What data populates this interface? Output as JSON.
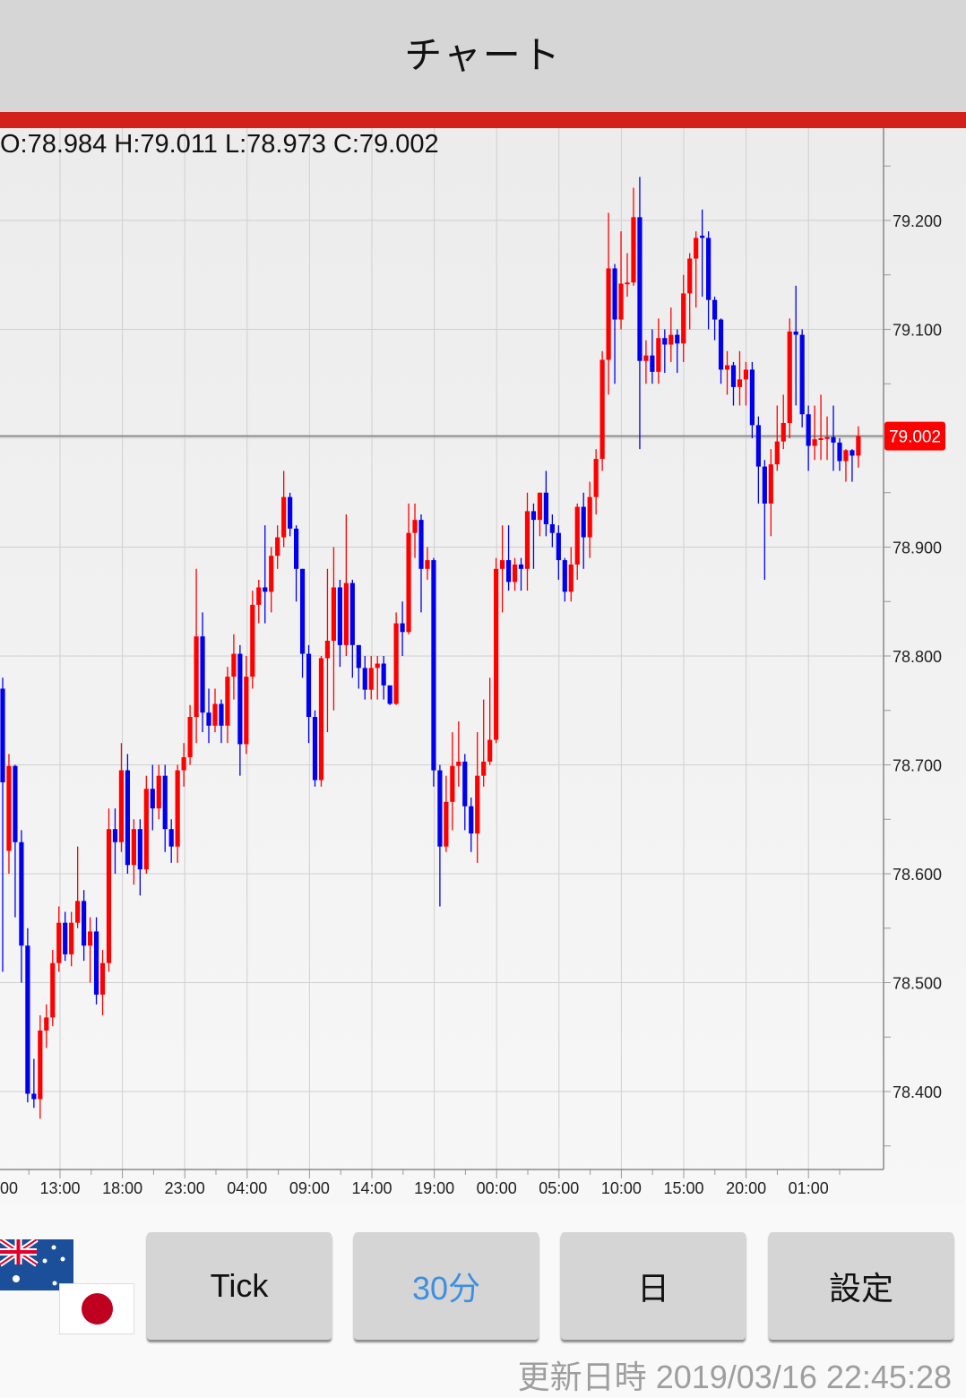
{
  "header": {
    "title": "チャート"
  },
  "ohlc_readout": "O:78.984 H:79.011 L:78.973 C:79.002",
  "colors": {
    "up": "#ff0000",
    "down": "#0000ee",
    "accent_bar": "#d3201a",
    "active_button": "#3d8fe0",
    "price_badge": "#ff0000"
  },
  "chart_data": {
    "type": "candlestick",
    "interval": "30分",
    "ylim": [
      78.35,
      79.28
    ],
    "grid": true,
    "y_ticks": [
      "79.200",
      "79.100",
      "78.900",
      "78.800",
      "78.700",
      "78.600",
      "78.500",
      "78.400"
    ],
    "y_tick_values": [
      79.2,
      79.1,
      78.9,
      78.8,
      78.7,
      78.6,
      78.5,
      78.4
    ],
    "x_ticks": [
      "00",
      "13:00",
      "18:00",
      "23:00",
      "04:00",
      "09:00",
      "14:00",
      "19:00",
      "00:00",
      "05:00",
      "10:00",
      "15:00",
      "20:00",
      "01:00"
    ],
    "current_price": "79.002",
    "current_price_value": 79.002,
    "candles_ohlc": [
      [
        78.77,
        78.78,
        78.51,
        78.684
      ],
      [
        78.621,
        78.71,
        78.6,
        78.699
      ],
      [
        78.699,
        78.7,
        78.56,
        78.629
      ],
      [
        78.629,
        78.64,
        78.5,
        78.534
      ],
      [
        78.534,
        78.55,
        78.39,
        78.398
      ],
      [
        78.398,
        78.43,
        78.385,
        78.393
      ],
      [
        78.393,
        78.47,
        78.375,
        78.456
      ],
      [
        78.456,
        78.48,
        78.44,
        78.468
      ],
      [
        78.468,
        78.53,
        78.46,
        78.518
      ],
      [
        78.518,
        78.57,
        78.51,
        78.555
      ],
      [
        78.555,
        78.565,
        78.52,
        78.526
      ],
      [
        78.526,
        78.565,
        78.515,
        78.555
      ],
      [
        78.555,
        78.625,
        78.55,
        78.575
      ],
      [
        78.575,
        78.585,
        78.52,
        78.534
      ],
      [
        78.534,
        78.56,
        78.5,
        78.547
      ],
      [
        78.547,
        78.56,
        78.48,
        78.489
      ],
      [
        78.489,
        78.53,
        78.47,
        78.518
      ],
      [
        78.518,
        78.66,
        78.51,
        78.641
      ],
      [
        78.641,
        78.66,
        78.6,
        78.629
      ],
      [
        78.629,
        78.72,
        78.62,
        78.695
      ],
      [
        78.695,
        78.71,
        78.6,
        78.608
      ],
      [
        78.608,
        78.65,
        78.59,
        78.641
      ],
      [
        78.641,
        78.65,
        78.58,
        78.604
      ],
      [
        78.604,
        78.69,
        78.6,
        78.678
      ],
      [
        78.678,
        78.7,
        78.64,
        78.66
      ],
      [
        78.66,
        78.7,
        78.65,
        78.69
      ],
      [
        78.69,
        78.7,
        78.62,
        78.641
      ],
      [
        78.641,
        78.65,
        78.61,
        78.625
      ],
      [
        78.625,
        78.7,
        78.61,
        78.695
      ],
      [
        78.695,
        78.72,
        78.68,
        78.707
      ],
      [
        78.707,
        78.755,
        78.7,
        78.744
      ],
      [
        78.744,
        78.88,
        78.72,
        78.818
      ],
      [
        78.818,
        78.84,
        78.73,
        78.748
      ],
      [
        78.748,
        78.77,
        78.72,
        78.736
      ],
      [
        78.736,
        78.77,
        78.73,
        78.756
      ],
      [
        78.756,
        78.76,
        78.72,
        78.736
      ],
      [
        78.736,
        78.79,
        78.72,
        78.781
      ],
      [
        78.781,
        78.82,
        78.76,
        78.802
      ],
      [
        78.802,
        78.81,
        78.69,
        78.719
      ],
      [
        78.719,
        78.8,
        78.71,
        78.781
      ],
      [
        78.781,
        78.86,
        78.77,
        78.847
      ],
      [
        78.847,
        78.87,
        78.83,
        78.863
      ],
      [
        78.863,
        78.92,
        78.83,
        78.859
      ],
      [
        78.859,
        78.9,
        78.84,
        78.892
      ],
      [
        78.892,
        78.92,
        78.88,
        78.909
      ],
      [
        78.909,
        78.97,
        78.9,
        78.946
      ],
      [
        78.946,
        78.95,
        78.91,
        78.917
      ],
      [
        78.917,
        78.92,
        78.85,
        78.88
      ],
      [
        78.88,
        78.88,
        78.78,
        78.802
      ],
      [
        78.802,
        78.81,
        78.72,
        78.744
      ],
      [
        78.744,
        78.75,
        78.68,
        78.686
      ],
      [
        78.686,
        78.8,
        78.68,
        78.798
      ],
      [
        78.798,
        78.88,
        78.73,
        78.814
      ],
      [
        78.814,
        78.9,
        78.75,
        78.863
      ],
      [
        78.863,
        78.87,
        78.79,
        78.81
      ],
      [
        78.81,
        78.93,
        78.8,
        78.867
      ],
      [
        78.867,
        78.87,
        78.78,
        78.81
      ],
      [
        78.81,
        78.81,
        78.77,
        78.789
      ],
      [
        78.789,
        78.8,
        78.76,
        78.769
      ],
      [
        78.769,
        78.8,
        78.76,
        78.789
      ],
      [
        78.789,
        78.8,
        78.76,
        78.793
      ],
      [
        78.793,
        78.8,
        78.76,
        78.773
      ],
      [
        78.773,
        78.77,
        78.755,
        78.756
      ],
      [
        78.756,
        78.84,
        78.755,
        78.83
      ],
      [
        78.83,
        78.85,
        78.8,
        78.822
      ],
      [
        78.822,
        78.94,
        78.82,
        78.913
      ],
      [
        78.913,
        78.94,
        78.89,
        78.925
      ],
      [
        78.925,
        78.93,
        78.84,
        78.88
      ],
      [
        78.88,
        78.9,
        78.87,
        78.888
      ],
      [
        78.888,
        78.89,
        78.68,
        78.695
      ],
      [
        78.695,
        78.7,
        78.57,
        78.625
      ],
      [
        78.625,
        78.69,
        78.62,
        78.666
      ],
      [
        78.666,
        78.73,
        78.64,
        78.699
      ],
      [
        78.699,
        78.74,
        78.68,
        78.703
      ],
      [
        78.703,
        78.71,
        78.64,
        78.662
      ],
      [
        78.662,
        78.67,
        78.62,
        78.637
      ],
      [
        78.637,
        78.73,
        78.61,
        78.69
      ],
      [
        78.69,
        78.76,
        78.68,
        78.703
      ],
      [
        78.703,
        78.78,
        78.7,
        78.723
      ],
      [
        78.723,
        78.89,
        78.72,
        78.88
      ],
      [
        78.88,
        78.92,
        78.84,
        78.888
      ],
      [
        78.888,
        78.92,
        78.86,
        78.868
      ],
      [
        78.868,
        78.89,
        78.86,
        78.884
      ],
      [
        78.884,
        78.89,
        78.86,
        78.88
      ],
      [
        78.88,
        78.95,
        78.86,
        78.933
      ],
      [
        78.933,
        78.94,
        78.88,
        78.925
      ],
      [
        78.925,
        78.95,
        78.91,
        78.95
      ],
      [
        78.95,
        78.97,
        78.91,
        78.921
      ],
      [
        78.921,
        78.93,
        78.9,
        78.913
      ],
      [
        78.913,
        78.92,
        78.87,
        78.888
      ],
      [
        78.888,
        78.89,
        78.85,
        78.859
      ],
      [
        78.859,
        78.9,
        78.85,
        78.884
      ],
      [
        78.884,
        78.94,
        78.87,
        78.937
      ],
      [
        78.937,
        78.95,
        78.88,
        78.909
      ],
      [
        78.909,
        78.96,
        78.89,
        78.946
      ],
      [
        78.946,
        78.99,
        78.93,
        78.981
      ],
      [
        78.981,
        79.08,
        78.97,
        79.072
      ],
      [
        79.072,
        79.207,
        79.04,
        79.156
      ],
      [
        79.156,
        79.16,
        79.05,
        79.109
      ],
      [
        79.109,
        79.19,
        79.1,
        79.142
      ],
      [
        79.142,
        79.17,
        79.13,
        79.143
      ],
      [
        79.143,
        79.23,
        79.14,
        79.203
      ],
      [
        79.203,
        79.24,
        78.99,
        79.071
      ],
      [
        79.071,
        79.09,
        79.05,
        79.076
      ],
      [
        79.076,
        79.1,
        79.05,
        79.061
      ],
      [
        79.061,
        79.11,
        79.05,
        79.092
      ],
      [
        79.092,
        79.1,
        79.06,
        79.086
      ],
      [
        79.086,
        79.12,
        79.07,
        79.095
      ],
      [
        79.095,
        79.1,
        79.06,
        79.087
      ],
      [
        79.087,
        79.15,
        79.07,
        79.133
      ],
      [
        79.133,
        79.17,
        79.1,
        79.165
      ],
      [
        79.165,
        79.19,
        79.12,
        79.184
      ],
      [
        79.186,
        79.21,
        79.13,
        79.184
      ],
      [
        79.184,
        79.19,
        79.1,
        79.127
      ],
      [
        79.127,
        79.13,
        79.09,
        79.109
      ],
      [
        79.109,
        79.11,
        79.05,
        79.063
      ],
      [
        79.063,
        79.08,
        79.04,
        79.067
      ],
      [
        79.067,
        79.07,
        79.03,
        79.047
      ],
      [
        79.047,
        79.08,
        79.03,
        79.054
      ],
      [
        79.054,
        79.07,
        79.03,
        79.063
      ],
      [
        79.063,
        79.07,
        79.0,
        79.012
      ],
      [
        79.012,
        79.02,
        78.94,
        78.974
      ],
      [
        78.974,
        78.98,
        78.87,
        78.94
      ],
      [
        78.94,
        78.99,
        78.91,
        78.976
      ],
      [
        78.976,
        79.03,
        78.97,
        78.997
      ],
      [
        78.997,
        79.04,
        78.99,
        79.014
      ],
      [
        79.014,
        79.11,
        79.0,
        79.098
      ],
      [
        79.098,
        79.14,
        79.03,
        79.095
      ],
      [
        79.095,
        79.1,
        79.01,
        79.022
      ],
      [
        79.022,
        79.03,
        78.97,
        78.993
      ],
      [
        78.993,
        79.03,
        78.98,
        78.999
      ],
      [
        78.999,
        79.04,
        78.98,
        79.0
      ],
      [
        79.0,
        79.02,
        78.98,
        79.001
      ],
      [
        79.001,
        79.03,
        78.97,
        78.996
      ],
      [
        78.996,
        79.0,
        78.97,
        78.979
      ],
      [
        78.979,
        78.99,
        78.96,
        78.989
      ],
      [
        78.989,
        78.99,
        78.96,
        78.984
      ],
      [
        78.984,
        79.011,
        78.973,
        79.002
      ]
    ]
  },
  "currency_pair": {
    "base_flag": "australia-flag",
    "quote_flag": "japan-flag"
  },
  "buttons": [
    {
      "label": "Tick",
      "active": false
    },
    {
      "label": "30分",
      "active": true
    },
    {
      "label": "日",
      "active": false
    },
    {
      "label": "設定",
      "active": false
    }
  ],
  "footer": {
    "updated_label": "更新日時",
    "updated_value": "2019/03/16 22:45:28"
  }
}
